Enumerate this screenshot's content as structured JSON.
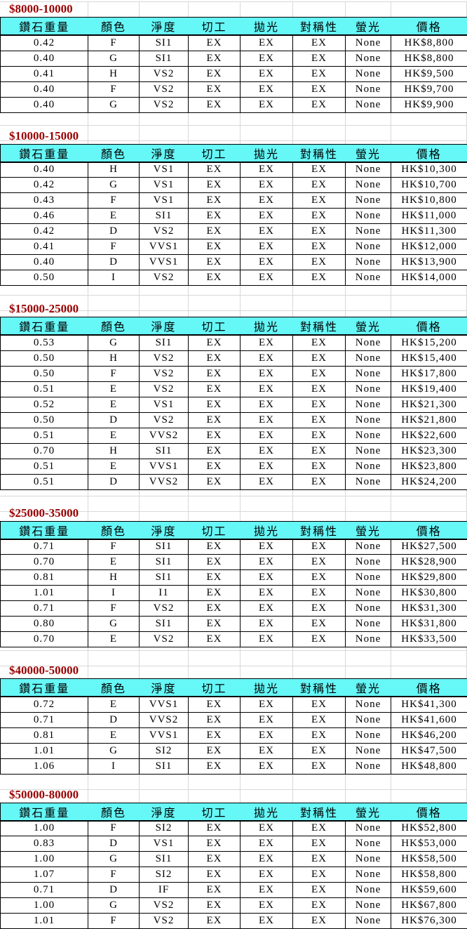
{
  "colors": {
    "header_bg": "#66F7F7",
    "section_title_text": "#990000",
    "grid_line": "#D8D8D8",
    "cell_border": "#000000"
  },
  "table": {
    "columns": [
      "鑽石重量",
      "顏色",
      "淨度",
      "切工",
      "拋光",
      "對稱性",
      "螢光",
      "價格"
    ],
    "sections": [
      {
        "title": "$8000-10000",
        "rows": [
          [
            "0.42",
            "F",
            "SI1",
            "EX",
            "EX",
            "EX",
            "None",
            "HK$8,800"
          ],
          [
            "0.40",
            "G",
            "SI1",
            "EX",
            "EX",
            "EX",
            "None",
            "HK$8,800"
          ],
          [
            "0.41",
            "H",
            "VS2",
            "EX",
            "EX",
            "EX",
            "None",
            "HK$9,500"
          ],
          [
            "0.40",
            "F",
            "VS2",
            "EX",
            "EX",
            "EX",
            "None",
            "HK$9,700"
          ],
          [
            "0.40",
            "G",
            "VS2",
            "EX",
            "EX",
            "EX",
            "None",
            "HK$9,900"
          ]
        ]
      },
      {
        "title": "$10000-15000",
        "rows": [
          [
            "0.40",
            "H",
            "VS1",
            "EX",
            "EX",
            "EX",
            "None",
            "HK$10,300"
          ],
          [
            "0.42",
            "G",
            "VS1",
            "EX",
            "EX",
            "EX",
            "None",
            "HK$10,700"
          ],
          [
            "0.43",
            "F",
            "VS1",
            "EX",
            "EX",
            "EX",
            "None",
            "HK$10,800"
          ],
          [
            "0.46",
            "E",
            "SI1",
            "EX",
            "EX",
            "EX",
            "None",
            "HK$11,000"
          ],
          [
            "0.42",
            "D",
            "VS2",
            "EX",
            "EX",
            "EX",
            "None",
            "HK$11,300"
          ],
          [
            "0.41",
            "F",
            "VVS1",
            "EX",
            "EX",
            "EX",
            "None",
            "HK$12,000"
          ],
          [
            "0.40",
            "D",
            "VVS1",
            "EX",
            "EX",
            "EX",
            "None",
            "HK$13,900"
          ],
          [
            "0.50",
            "I",
            "VS2",
            "EX",
            "EX",
            "EX",
            "None",
            "HK$14,000"
          ]
        ]
      },
      {
        "title": "$15000-25000",
        "rows": [
          [
            "0.53",
            "G",
            "SI1",
            "EX",
            "EX",
            "EX",
            "None",
            "HK$15,200"
          ],
          [
            "0.50",
            "H",
            "VS2",
            "EX",
            "EX",
            "EX",
            "None",
            "HK$15,400"
          ],
          [
            "0.50",
            "F",
            "VS2",
            "EX",
            "EX",
            "EX",
            "None",
            "HK$17,800"
          ],
          [
            "0.51",
            "E",
            "VS2",
            "EX",
            "EX",
            "EX",
            "None",
            "HK$19,400"
          ],
          [
            "0.52",
            "E",
            "VS1",
            "EX",
            "EX",
            "EX",
            "None",
            "HK$21,300"
          ],
          [
            "0.50",
            "D",
            "VS2",
            "EX",
            "EX",
            "EX",
            "None",
            "HK$21,800"
          ],
          [
            "0.51",
            "E",
            "VVS2",
            "EX",
            "EX",
            "EX",
            "None",
            "HK$22,600"
          ],
          [
            "0.70",
            "H",
            "SI1",
            "EX",
            "EX",
            "EX",
            "None",
            "HK$23,300"
          ],
          [
            "0.51",
            "E",
            "VVS1",
            "EX",
            "EX",
            "EX",
            "None",
            "HK$23,800"
          ],
          [
            "0.51",
            "D",
            "VVS2",
            "EX",
            "EX",
            "EX",
            "None",
            "HK$24,200"
          ]
        ]
      },
      {
        "title": "$25000-35000",
        "rows": [
          [
            "0.71",
            "F",
            "SI1",
            "EX",
            "EX",
            "EX",
            "None",
            "HK$27,500"
          ],
          [
            "0.70",
            "E",
            "SI1",
            "EX",
            "EX",
            "EX",
            "None",
            "HK$28,900"
          ],
          [
            "0.81",
            "H",
            "SI1",
            "EX",
            "EX",
            "EX",
            "None",
            "HK$29,800"
          ],
          [
            "1.01",
            "I",
            "I1",
            "EX",
            "EX",
            "EX",
            "None",
            "HK$30,800"
          ],
          [
            "0.71",
            "F",
            "VS2",
            "EX",
            "EX",
            "EX",
            "None",
            "HK$31,300"
          ],
          [
            "0.80",
            "G",
            "SI1",
            "EX",
            "EX",
            "EX",
            "None",
            "HK$31,800"
          ],
          [
            "0.70",
            "E",
            "VS2",
            "EX",
            "EX",
            "EX",
            "None",
            "HK$33,500"
          ]
        ]
      },
      {
        "title": "$40000-50000",
        "rows": [
          [
            "0.72",
            "E",
            "VVS1",
            "EX",
            "EX",
            "EX",
            "None",
            "HK$41,300"
          ],
          [
            "0.71",
            "D",
            "VVS2",
            "EX",
            "EX",
            "EX",
            "None",
            "HK$41,600"
          ],
          [
            "0.81",
            "E",
            "VVS1",
            "EX",
            "EX",
            "EX",
            "None",
            "HK$46,200"
          ],
          [
            "1.01",
            "G",
            "SI2",
            "EX",
            "EX",
            "EX",
            "None",
            "HK$47,500"
          ],
          [
            "1.06",
            "I",
            "SI1",
            "EX",
            "EX",
            "EX",
            "None",
            "HK$48,800"
          ]
        ]
      },
      {
        "title": "$50000-80000",
        "rows": [
          [
            "1.00",
            "F",
            "SI2",
            "EX",
            "EX",
            "EX",
            "None",
            "HK$52,800"
          ],
          [
            "0.83",
            "D",
            "VS1",
            "EX",
            "EX",
            "EX",
            "None",
            "HK$53,000"
          ],
          [
            "1.00",
            "G",
            "SI1",
            "EX",
            "EX",
            "EX",
            "None",
            "HK$58,500"
          ],
          [
            "1.07",
            "F",
            "SI2",
            "EX",
            "EX",
            "EX",
            "None",
            "HK$58,800"
          ],
          [
            "0.71",
            "D",
            "IF",
            "EX",
            "EX",
            "EX",
            "None",
            "HK$59,600"
          ],
          [
            "1.00",
            "G",
            "VS2",
            "EX",
            "EX",
            "EX",
            "None",
            "HK$67,800"
          ],
          [
            "1.01",
            "F",
            "VS2",
            "EX",
            "EX",
            "EX",
            "None",
            "HK$76,300"
          ]
        ]
      }
    ]
  }
}
